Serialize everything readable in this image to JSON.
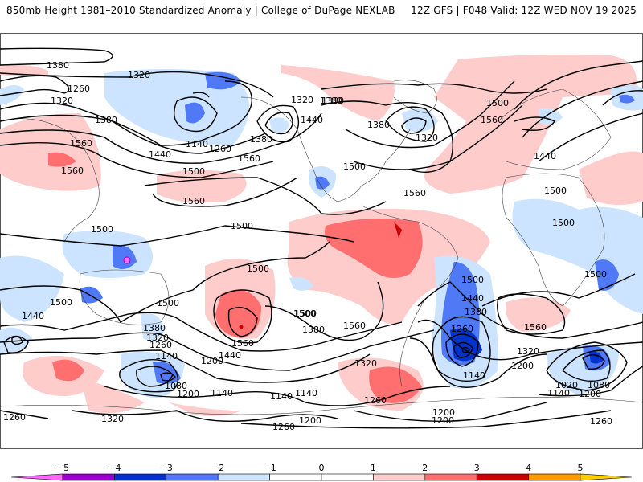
{
  "header": {
    "title_left": "850mb Height 1981–2010 Standardized Anomaly | College of DuPage NEXLAB",
    "title_right": "12Z GFS | F048 Valid: 12Z WED NOV 19 2025"
  },
  "colors": {
    "below_-5": "#ff66ff",
    "-5_-4": "#9900cc",
    "-4_-3": "#0033cc",
    "-3_-2": "#4f79f5",
    "-2_-1": "#cce4ff",
    "-1_0": "#ffffff",
    "0_1": "#ffffff",
    "1_2": "#ffcccc",
    "2_3": "#ff6f6f",
    "3_4": "#cc0000",
    "4_5": "#ff9900",
    "above_5": "#ffcc00"
  },
  "colorbar": {
    "ticks": [
      "−5",
      "−4",
      "−3",
      "−2",
      "−1",
      "0",
      "1",
      "2",
      "3",
      "4",
      "5"
    ]
  },
  "map": {
    "contour_labels": [
      {
        "id": "c1",
        "text": "1380"
      },
      {
        "id": "c2",
        "text": "1320"
      },
      {
        "id": "c3",
        "text": "1260"
      },
      {
        "id": "c4",
        "text": "1320"
      },
      {
        "id": "c5",
        "text": "1380"
      },
      {
        "id": "c6",
        "text": "1560"
      },
      {
        "id": "c7",
        "text": "1560"
      },
      {
        "id": "c8",
        "text": "1440"
      },
      {
        "id": "c9",
        "text": "1140"
      },
      {
        "id": "c10",
        "text": "1260"
      },
      {
        "id": "c11",
        "text": "1380"
      },
      {
        "id": "c12",
        "text": "1560"
      },
      {
        "id": "c13",
        "text": "1500"
      },
      {
        "id": "c14",
        "text": "1560"
      },
      {
        "id": "c15",
        "text": "1320"
      },
      {
        "id": "c16",
        "text": "1380"
      },
      {
        "id": "c17",
        "text": "1440"
      },
      {
        "id": "c18",
        "text": "1380"
      },
      {
        "id": "c19",
        "text": "1500"
      },
      {
        "id": "c20",
        "text": "1380"
      },
      {
        "id": "c21",
        "text": "1320"
      },
      {
        "id": "c22",
        "text": "1500"
      },
      {
        "id": "c23",
        "text": "1560"
      },
      {
        "id": "c24",
        "text": "1560"
      },
      {
        "id": "c25",
        "text": "1500"
      },
      {
        "id": "c26",
        "text": "1440"
      },
      {
        "id": "c27",
        "text": "1500"
      },
      {
        "id": "c28",
        "text": "1500"
      },
      {
        "id": "c29",
        "text": "1500"
      },
      {
        "id": "c30",
        "text": "1500"
      },
      {
        "id": "c31",
        "text": "1440"
      },
      {
        "id": "c32",
        "text": "1500"
      },
      {
        "id": "c33",
        "text": "1500"
      },
      {
        "id": "c34",
        "text": "1380"
      },
      {
        "id": "c35",
        "text": "1320"
      },
      {
        "id": "c36",
        "text": "1260"
      },
      {
        "id": "c37",
        "text": "1140"
      },
      {
        "id": "c38",
        "text": "1080"
      },
      {
        "id": "c39",
        "text": "1200"
      },
      {
        "id": "c40",
        "text": "1140"
      },
      {
        "id": "c41",
        "text": "1560"
      },
      {
        "id": "c42",
        "text": "1440"
      },
      {
        "id": "c43",
        "text": "1500"
      },
      {
        "id": "c44",
        "text": "1380"
      },
      {
        "id": "c45",
        "text": "1200"
      },
      {
        "id": "c46",
        "text": "1560"
      },
      {
        "id": "c47",
        "text": "1260"
      },
      {
        "id": "c48",
        "text": "1320"
      },
      {
        "id": "c49",
        "text": "1140"
      },
      {
        "id": "c50",
        "text": "1140"
      },
      {
        "id": "c51",
        "text": "1200"
      },
      {
        "id": "c52",
        "text": "1200"
      },
      {
        "id": "c53",
        "text": "1260"
      },
      {
        "id": "c54",
        "text": "1320"
      },
      {
        "id": "c55",
        "text": "1260"
      },
      {
        "id": "c56",
        "text": "1500"
      },
      {
        "id": "c57",
        "text": "1440"
      },
      {
        "id": "c58",
        "text": "1380"
      },
      {
        "id": "c59",
        "text": "1260"
      },
      {
        "id": "c60",
        "text": "1560"
      },
      {
        "id": "c61",
        "text": "1320"
      },
      {
        "id": "c62",
        "text": "1200"
      },
      {
        "id": "c63",
        "text": "1140"
      },
      {
        "id": "c64",
        "text": "1020"
      },
      {
        "id": "c65",
        "text": "1080"
      },
      {
        "id": "c66",
        "text": "1140"
      },
      {
        "id": "c67",
        "text": "1200"
      },
      {
        "id": "c68",
        "text": "1200"
      },
      {
        "id": "c69",
        "text": "1260"
      },
      {
        "id": "c70",
        "text": "1500"
      },
      {
        "id": "c71",
        "text": "1500"
      }
    ]
  }
}
